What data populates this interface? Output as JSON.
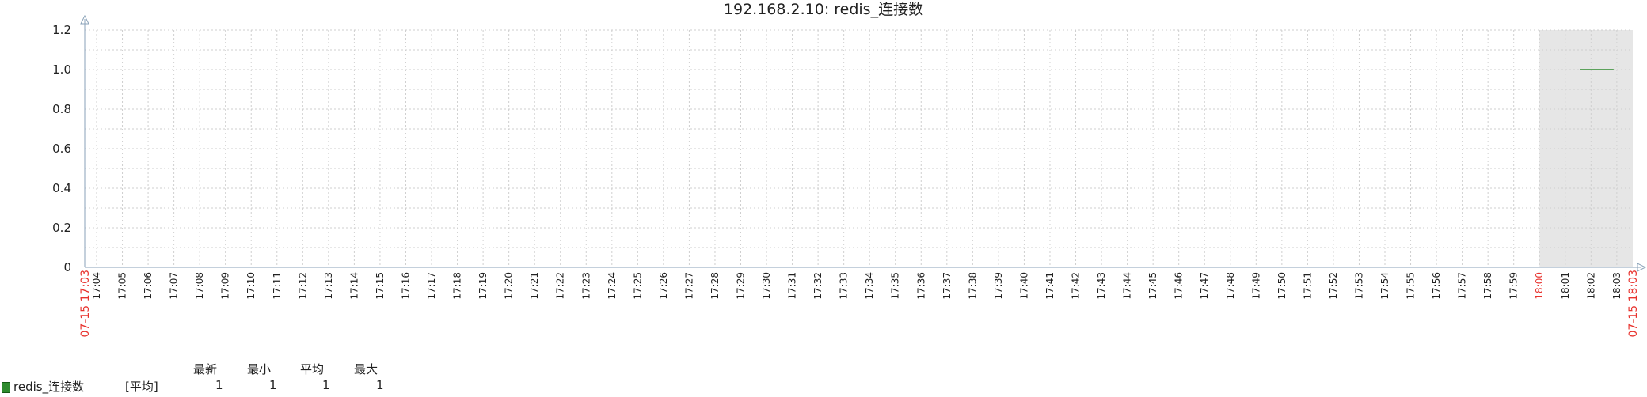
{
  "chart_data": {
    "type": "line",
    "title": "192.168.2.10: redis_连接数",
    "ylim": [
      0,
      1.2
    ],
    "yticks": [
      "0",
      "0.2",
      "0.4",
      "0.6",
      "0.8",
      "1.0",
      "1.2"
    ],
    "x_start_label": "07-15 17:03",
    "x_end_label": "07-15 18:03",
    "x_ticks": [
      "17:04",
      "17:05",
      "17:06",
      "17:07",
      "17:08",
      "17:09",
      "17:10",
      "17:11",
      "17:12",
      "17:13",
      "17:14",
      "17:15",
      "17:16",
      "17:17",
      "17:18",
      "17:19",
      "17:20",
      "17:21",
      "17:22",
      "17:23",
      "17:24",
      "17:25",
      "17:26",
      "17:27",
      "17:28",
      "17:29",
      "17:30",
      "17:31",
      "17:32",
      "17:33",
      "17:34",
      "17:35",
      "17:36",
      "17:37",
      "17:38",
      "17:39",
      "17:40",
      "17:41",
      "17:42",
      "17:43",
      "17:44",
      "17:45",
      "17:46",
      "17:47",
      "17:48",
      "17:49",
      "17:50",
      "17:51",
      "17:52",
      "17:53",
      "17:54",
      "17:55",
      "17:56",
      "17:57",
      "17:58",
      "17:59",
      "18:00",
      "18:01",
      "18:02",
      "18:03"
    ],
    "highlight_tick": "18:00",
    "shaded_region": [
      "18:00",
      "18:03"
    ],
    "grid": true,
    "series": [
      {
        "name": "redis_连接数",
        "color": "#2e8b2e",
        "x": [
          "18:02",
          "18:03"
        ],
        "values": [
          1,
          1
        ]
      }
    ]
  },
  "legend": {
    "headers": [
      "最新",
      "最小",
      "平均",
      "最大"
    ],
    "rows": [
      {
        "name": "redis_连接数",
        "agg": "[平均]",
        "latest": "1",
        "min": "1",
        "avg": "1",
        "max": "1",
        "color": "#2e8b2e"
      }
    ]
  }
}
